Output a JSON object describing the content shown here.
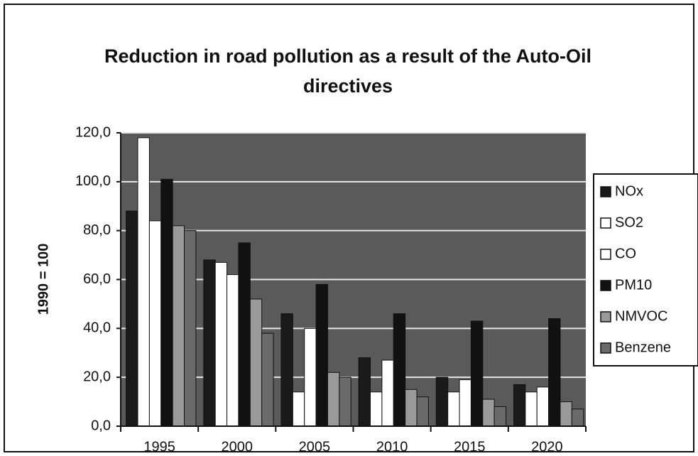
{
  "chart_data": {
    "type": "bar",
    "title": "Reduction in road pollution as a result of the Auto-Oil directives",
    "y_label": "1990 = 100",
    "categories": [
      "1995",
      "2000",
      "2005",
      "2010",
      "2015",
      "2020"
    ],
    "series": [
      {
        "name": "NOx",
        "color": "#1a1a1a",
        "values": [
          88,
          68,
          46,
          28,
          20,
          17
        ]
      },
      {
        "name": "SO2",
        "color": "#ffffff",
        "values": [
          118,
          67,
          14,
          14,
          14,
          14
        ]
      },
      {
        "name": "CO",
        "color": "#ffffff",
        "values": [
          84,
          62,
          40,
          27,
          19,
          16
        ]
      },
      {
        "name": "PM10",
        "color": "#111111",
        "values": [
          101,
          75,
          58,
          46,
          43,
          44
        ]
      },
      {
        "name": "NMVOC",
        "color": "#9a9a9a",
        "values": [
          82,
          52,
          22,
          15,
          11,
          10
        ]
      },
      {
        "name": "Benzene",
        "color": "#6a6a6a",
        "values": [
          80,
          38,
          20,
          12,
          8,
          7
        ]
      }
    ],
    "ylim": [
      0,
      120
    ],
    "yticks": [
      {
        "value": 0,
        "label": "0,0"
      },
      {
        "value": 20,
        "label": "20,0"
      },
      {
        "value": 40,
        "label": "40,0"
      },
      {
        "value": 60,
        "label": "60,0"
      },
      {
        "value": 80,
        "label": "80,0"
      },
      {
        "value": 100,
        "label": "100,0"
      },
      {
        "value": 120,
        "label": "120,0"
      }
    ],
    "grid": true,
    "legend": "right"
  }
}
